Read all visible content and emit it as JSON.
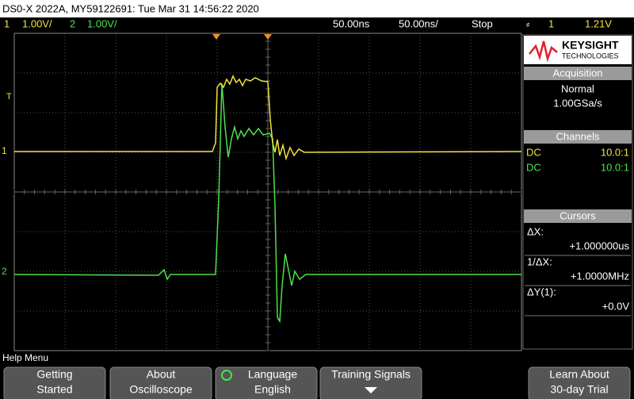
{
  "title_bar": "DS0-X 2022A, MY59122691: Tue Mar 31 14:56:22 2020",
  "status_bar": {
    "ch1_number": "1",
    "ch1_scale": "1.00V/",
    "ch2_number": "2",
    "ch2_scale": "1.00V/",
    "delay": "50.00ns",
    "timebase": "50.00ns/",
    "run_state": "Stop",
    "trigger_source": "1",
    "trigger_level": "1.21V"
  },
  "graticule": {
    "trigger_marker": "T",
    "ch1_marker": "1",
    "ch2_marker": "2"
  },
  "brand": {
    "name": "KEYSIGHT",
    "subtitle": "TECHNOLOGIES"
  },
  "acquisition": {
    "title": "Acquisition",
    "mode": "Normal",
    "rate": "1.00GSa/s"
  },
  "channels": {
    "title": "Channels",
    "rows": [
      [
        "DC",
        "10.0:1"
      ],
      [
        "DC",
        "10.0:1"
      ]
    ]
  },
  "cursors": {
    "title": "Cursors",
    "rows": [
      [
        "ΔX:",
        "+1.000000us"
      ],
      [
        "1/ΔX:",
        "+1.0000MHz"
      ],
      [
        "ΔY(1):",
        "+0.0V"
      ]
    ]
  },
  "help_menu": "Help Menu",
  "softkeys": [
    [
      "Getting",
      "Started"
    ],
    [
      "About",
      "Oscilloscope"
    ],
    [
      "Language",
      "English"
    ],
    [
      "Training Signals"
    ],
    [
      "Learn About",
      "30-day Trial"
    ]
  ]
}
